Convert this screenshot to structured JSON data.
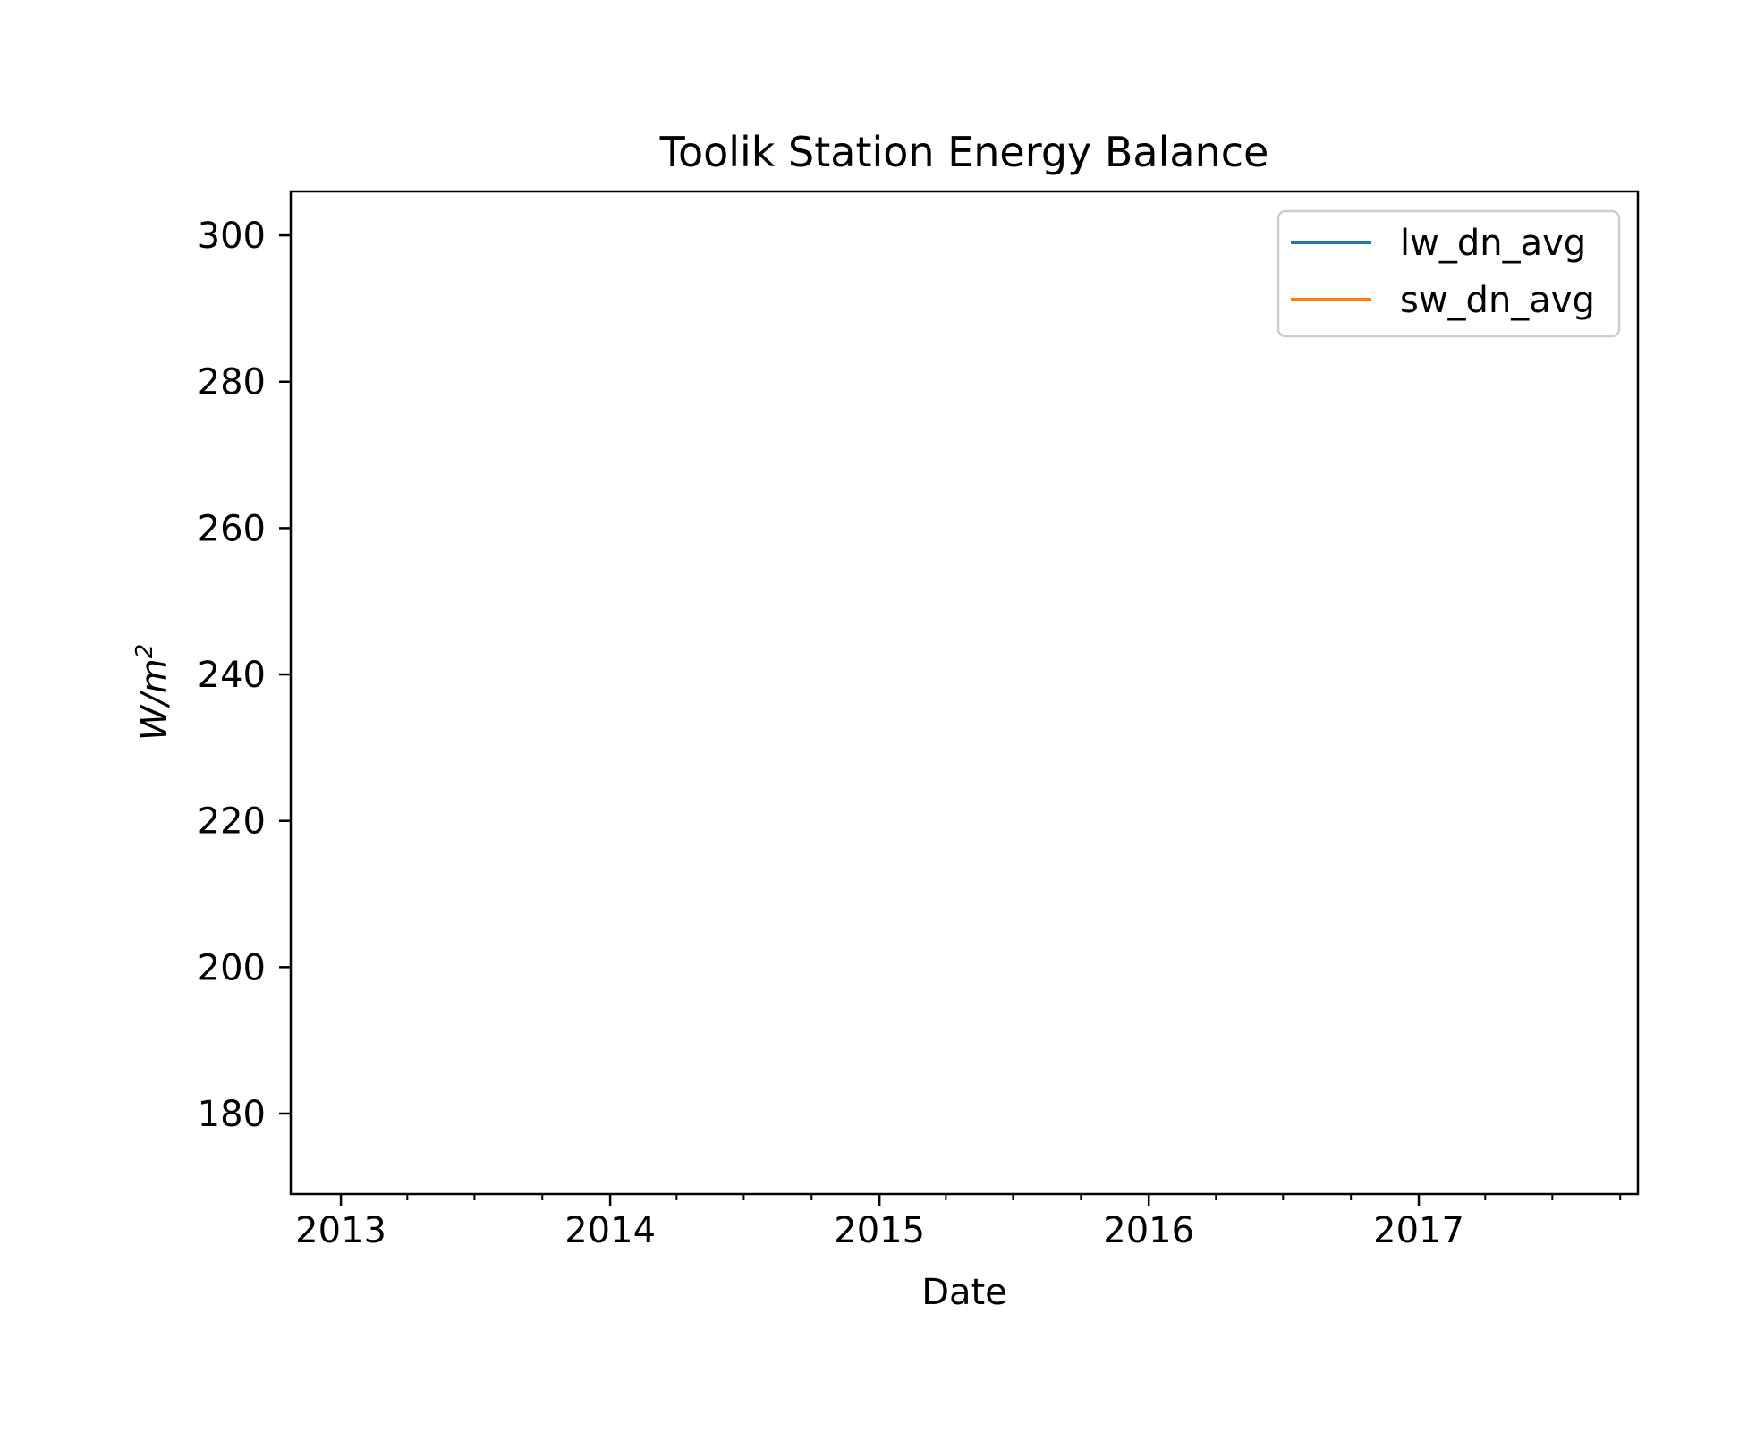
{
  "chart_data": {
    "type": "line",
    "title": "Toolik Station Energy Balance",
    "xlabel": "Date",
    "ylabel": {
      "base": "W/m",
      "superscript": "2"
    },
    "x_axis": {
      "scale": "date",
      "range": [
        "2012-10-25",
        "2017-10-25"
      ],
      "major_ticks": [
        {
          "label": "2013",
          "date": "2013-01-01"
        },
        {
          "label": "2014",
          "date": "2014-01-01"
        },
        {
          "label": "2015",
          "date": "2015-01-01"
        },
        {
          "label": "2016",
          "date": "2016-01-01"
        },
        {
          "label": "2017",
          "date": "2017-01-01"
        }
      ],
      "minor_tick_interval_months": 3
    },
    "y_axis": {
      "range": [
        169,
        306
      ],
      "ticks": [
        180,
        200,
        220,
        240,
        260,
        280,
        300
      ]
    },
    "grid": false,
    "legend": {
      "placement": "top-right",
      "entries": [
        {
          "name": "lw_dn_avg",
          "color": "#1f77b4"
        },
        {
          "name": "sw_dn_avg",
          "color": "#ff7f0e"
        }
      ]
    },
    "series": [
      {
        "name": "lw_dn_avg",
        "color": "#1f77b4",
        "points": []
      },
      {
        "name": "sw_dn_avg",
        "color": "#ff7f0e",
        "points": []
      }
    ]
  }
}
